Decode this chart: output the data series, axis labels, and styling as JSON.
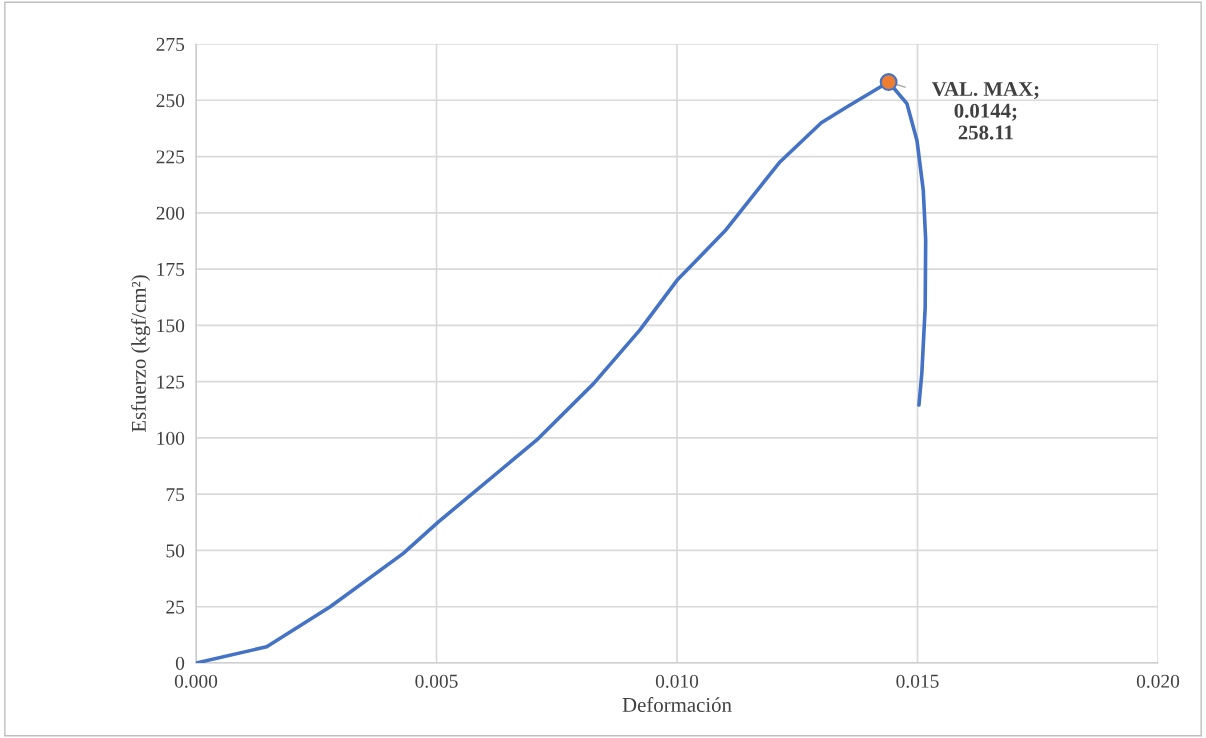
{
  "chart_data": {
    "type": "line",
    "xlabel": "Deformación",
    "ylabel": "Esfuerzo (kgf/cm²)",
    "xlim": [
      0,
      0.02
    ],
    "xticks": [
      {
        "value": 0,
        "label": "0.000"
      },
      {
        "value": 0.005,
        "label": "0.005"
      },
      {
        "value": 0.01,
        "label": "0.010"
      },
      {
        "value": 0.015,
        "label": "0.015"
      },
      {
        "value": 0.02,
        "label": "0.020"
      }
    ],
    "ylim": [
      0,
      275
    ],
    "yticks": [
      0,
      25,
      50,
      75,
      100,
      125,
      150,
      175,
      200,
      225,
      250,
      275
    ],
    "grid": true,
    "marker": "none",
    "line_style": "solid",
    "series": [
      {
        "color": "#4472c4",
        "x": [
          0,
          0.00147,
          0.00279,
          0.00431,
          0.00504,
          0.00708,
          0.00826,
          0.00923,
          0.01,
          0.011,
          0.01214,
          0.013,
          0.01353,
          0.0144,
          0.01478,
          0.01499,
          0.01512,
          0.01517,
          0.01516,
          0.01509,
          0.01503
        ],
        "values": [
          0,
          7.2,
          25,
          48.7,
          62.7,
          99,
          124,
          148,
          170,
          192,
          222.6,
          240,
          247,
          258.11,
          248.5,
          232,
          210,
          188,
          158,
          128.7,
          114.6
        ]
      },
      {
        "type": "scatter",
        "marker": "circle",
        "color": "#ed7d31",
        "x": [
          0.0144
        ],
        "values": [
          258.11
        ]
      }
    ],
    "annotations": [
      {
        "text": "VAL. MAX;\n0.0144;\n258.11",
        "x": 0.0144,
        "y": 258.11
      }
    ]
  }
}
